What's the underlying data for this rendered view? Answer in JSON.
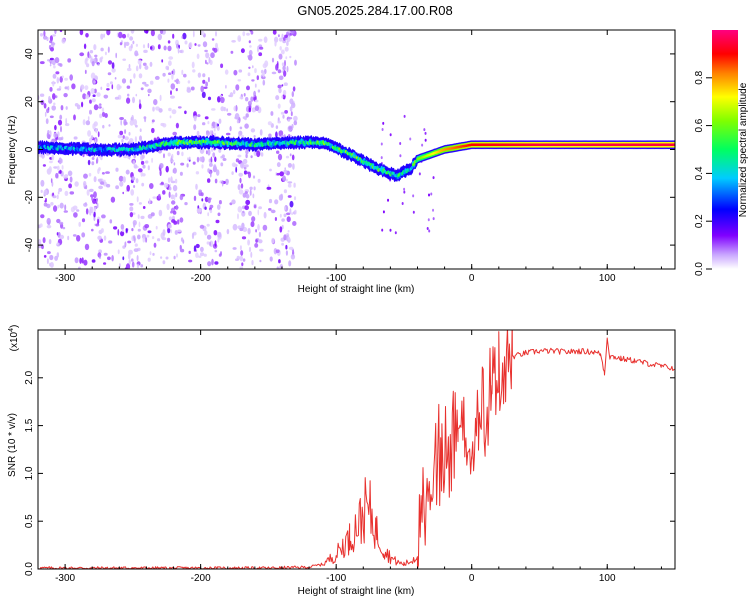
{
  "title": "GN05.2025.284.17.00.R08",
  "chart_data": [
    {
      "type": "heatmap",
      "xlabel": "Height of straight line (km)",
      "ylabel": "Frequency (Hz)",
      "xlim": [
        -320,
        150
      ],
      "ylim": [
        -50,
        50
      ],
      "xticks": [
        -300,
        -200,
        -100,
        0,
        100
      ],
      "xtick_labels": [
        "-300",
        "-200",
        "-100",
        "0",
        "100"
      ],
      "yticks": [
        -40,
        -20,
        0,
        20,
        40
      ],
      "ytick_labels": [
        "-40",
        "-20",
        "0",
        "20",
        "40"
      ],
      "colorbar": {
        "label": "Normalized spectral amplitude",
        "range": [
          0,
          1
        ],
        "ticks": [
          0,
          0.2,
          0.4,
          0.6,
          0.8
        ],
        "tick_labels": [
          "0.0",
          "0.2",
          "0.4",
          "0.6",
          "0.8"
        ],
        "colors": [
          "#ffffff",
          "#8000ff",
          "#0000ff",
          "#00ffff",
          "#00ff00",
          "#ffff00",
          "#ff8000",
          "#ff0000",
          "#ff0080"
        ]
      },
      "ridge": [
        {
          "x": -320,
          "freq": 1,
          "amp": 0.35
        },
        {
          "x": -280,
          "freq": 0,
          "amp": 0.35
        },
        {
          "x": -250,
          "freq": 0,
          "amp": 0.4
        },
        {
          "x": -220,
          "freq": 3,
          "amp": 0.5
        },
        {
          "x": -190,
          "freq": 3,
          "amp": 0.5
        },
        {
          "x": -160,
          "freq": 2,
          "amp": 0.45
        },
        {
          "x": -130,
          "freq": 3,
          "amp": 0.45
        },
        {
          "x": -110,
          "freq": 3,
          "amp": 0.5
        },
        {
          "x": -90,
          "freq": -2,
          "amp": 0.5
        },
        {
          "x": -70,
          "freq": -8,
          "amp": 0.5
        },
        {
          "x": -55,
          "freq": -11,
          "amp": 0.45
        },
        {
          "x": -45,
          "freq": -8,
          "amp": 0.4
        },
        {
          "x": -40,
          "freq": -4,
          "amp": 0.6
        },
        {
          "x": -20,
          "freq": 0,
          "amp": 0.8
        },
        {
          "x": 0,
          "freq": 2,
          "amp": 0.9
        },
        {
          "x": 50,
          "freq": 2,
          "amp": 0.95
        },
        {
          "x": 100,
          "freq": 2,
          "amp": 0.95
        },
        {
          "x": 150,
          "freq": 2,
          "amp": 0.95
        }
      ]
    },
    {
      "type": "line",
      "xlabel": "Height of straight line (km)",
      "ylabel": "SNR (10 * v/v)",
      "exponent_label": "(x10",
      "exponent_value": "4",
      "exponent_close": ")",
      "xlim": [
        -320,
        150
      ],
      "ylim": [
        0,
        2.5
      ],
      "xticks": [
        -300,
        -200,
        -100,
        0,
        100
      ],
      "xtick_labels": [
        "-300",
        "-200",
        "-100",
        "0",
        "100"
      ],
      "yticks": [
        0,
        0.5,
        1.0,
        1.5,
        2.0
      ],
      "ytick_labels": [
        "0.0",
        "0.5",
        "1.0",
        "1.5",
        "2.0"
      ],
      "series": [
        {
          "name": "SNR",
          "color": "#e8312e",
          "x": [
            -320,
            -250,
            -200,
            -150,
            -120,
            -110,
            -100,
            -95,
            -90,
            -85,
            -80,
            -78,
            -75,
            -70,
            -65,
            -60,
            -55,
            -50,
            -45,
            -40,
            -38,
            -35,
            -32,
            -30,
            -28,
            -25,
            -22,
            -20,
            -15,
            -10,
            -5,
            0,
            5,
            10,
            15,
            20,
            25,
            30,
            40,
            50,
            60,
            70,
            80,
            90,
            95,
            98,
            100,
            102,
            105,
            110,
            120,
            130,
            140,
            150
          ],
          "values": [
            0.01,
            0.01,
            0.01,
            0.01,
            0.02,
            0.05,
            0.15,
            0.25,
            0.32,
            0.45,
            0.55,
            0.65,
            0.6,
            0.38,
            0.22,
            0.12,
            0.07,
            0.05,
            0.08,
            0.15,
            0.45,
            0.85,
            1.1,
            0.95,
            1.25,
            1.4,
            1.1,
            1.3,
            1.45,
            1.55,
            1.6,
            1.65,
            1.75,
            1.85,
            1.95,
            2.05,
            2.15,
            2.22,
            2.26,
            2.28,
            2.28,
            2.27,
            2.28,
            2.27,
            2.25,
            2.05,
            2.42,
            2.22,
            2.22,
            2.2,
            2.18,
            2.15,
            2.12,
            2.1
          ]
        }
      ]
    }
  ]
}
